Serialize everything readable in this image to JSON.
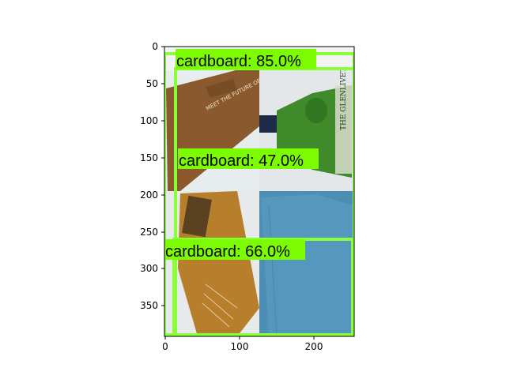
{
  "axes": {
    "x_ticks": [
      "0",
      "100",
      "200"
    ],
    "y_ticks": [
      "0",
      "50",
      "100",
      "150",
      "200",
      "250",
      "300",
      "350"
    ]
  },
  "image": {
    "panels": [
      {
        "name": "brown-cardboard-book-panel",
        "color": "#8a5a2e"
      },
      {
        "name": "green-glenlivet-bottle-panel",
        "color": "#3f8a2a"
      },
      {
        "name": "orange-cardboard-panel",
        "color": "#b77f2b"
      },
      {
        "name": "blue-cardboard-panel",
        "color": "#4d8fb4"
      }
    ],
    "visible_text": {
      "book_text": "MEET THE FUTURE OF",
      "bottle_text": "THE GLENLIVET"
    }
  },
  "detections": [
    {
      "label": "cardboard: 85.0%",
      "class": "cardboard",
      "score": 85.0
    },
    {
      "label": "cardboard: 47.0%",
      "class": "cardboard",
      "score": 47.0
    },
    {
      "label": "cardboard: 66.0%",
      "class": "cardboard",
      "score": 66.0
    }
  ],
  "colors": {
    "box": "#89ff3a",
    "label_bg": "#7cfc00",
    "axis": "#000000"
  }
}
